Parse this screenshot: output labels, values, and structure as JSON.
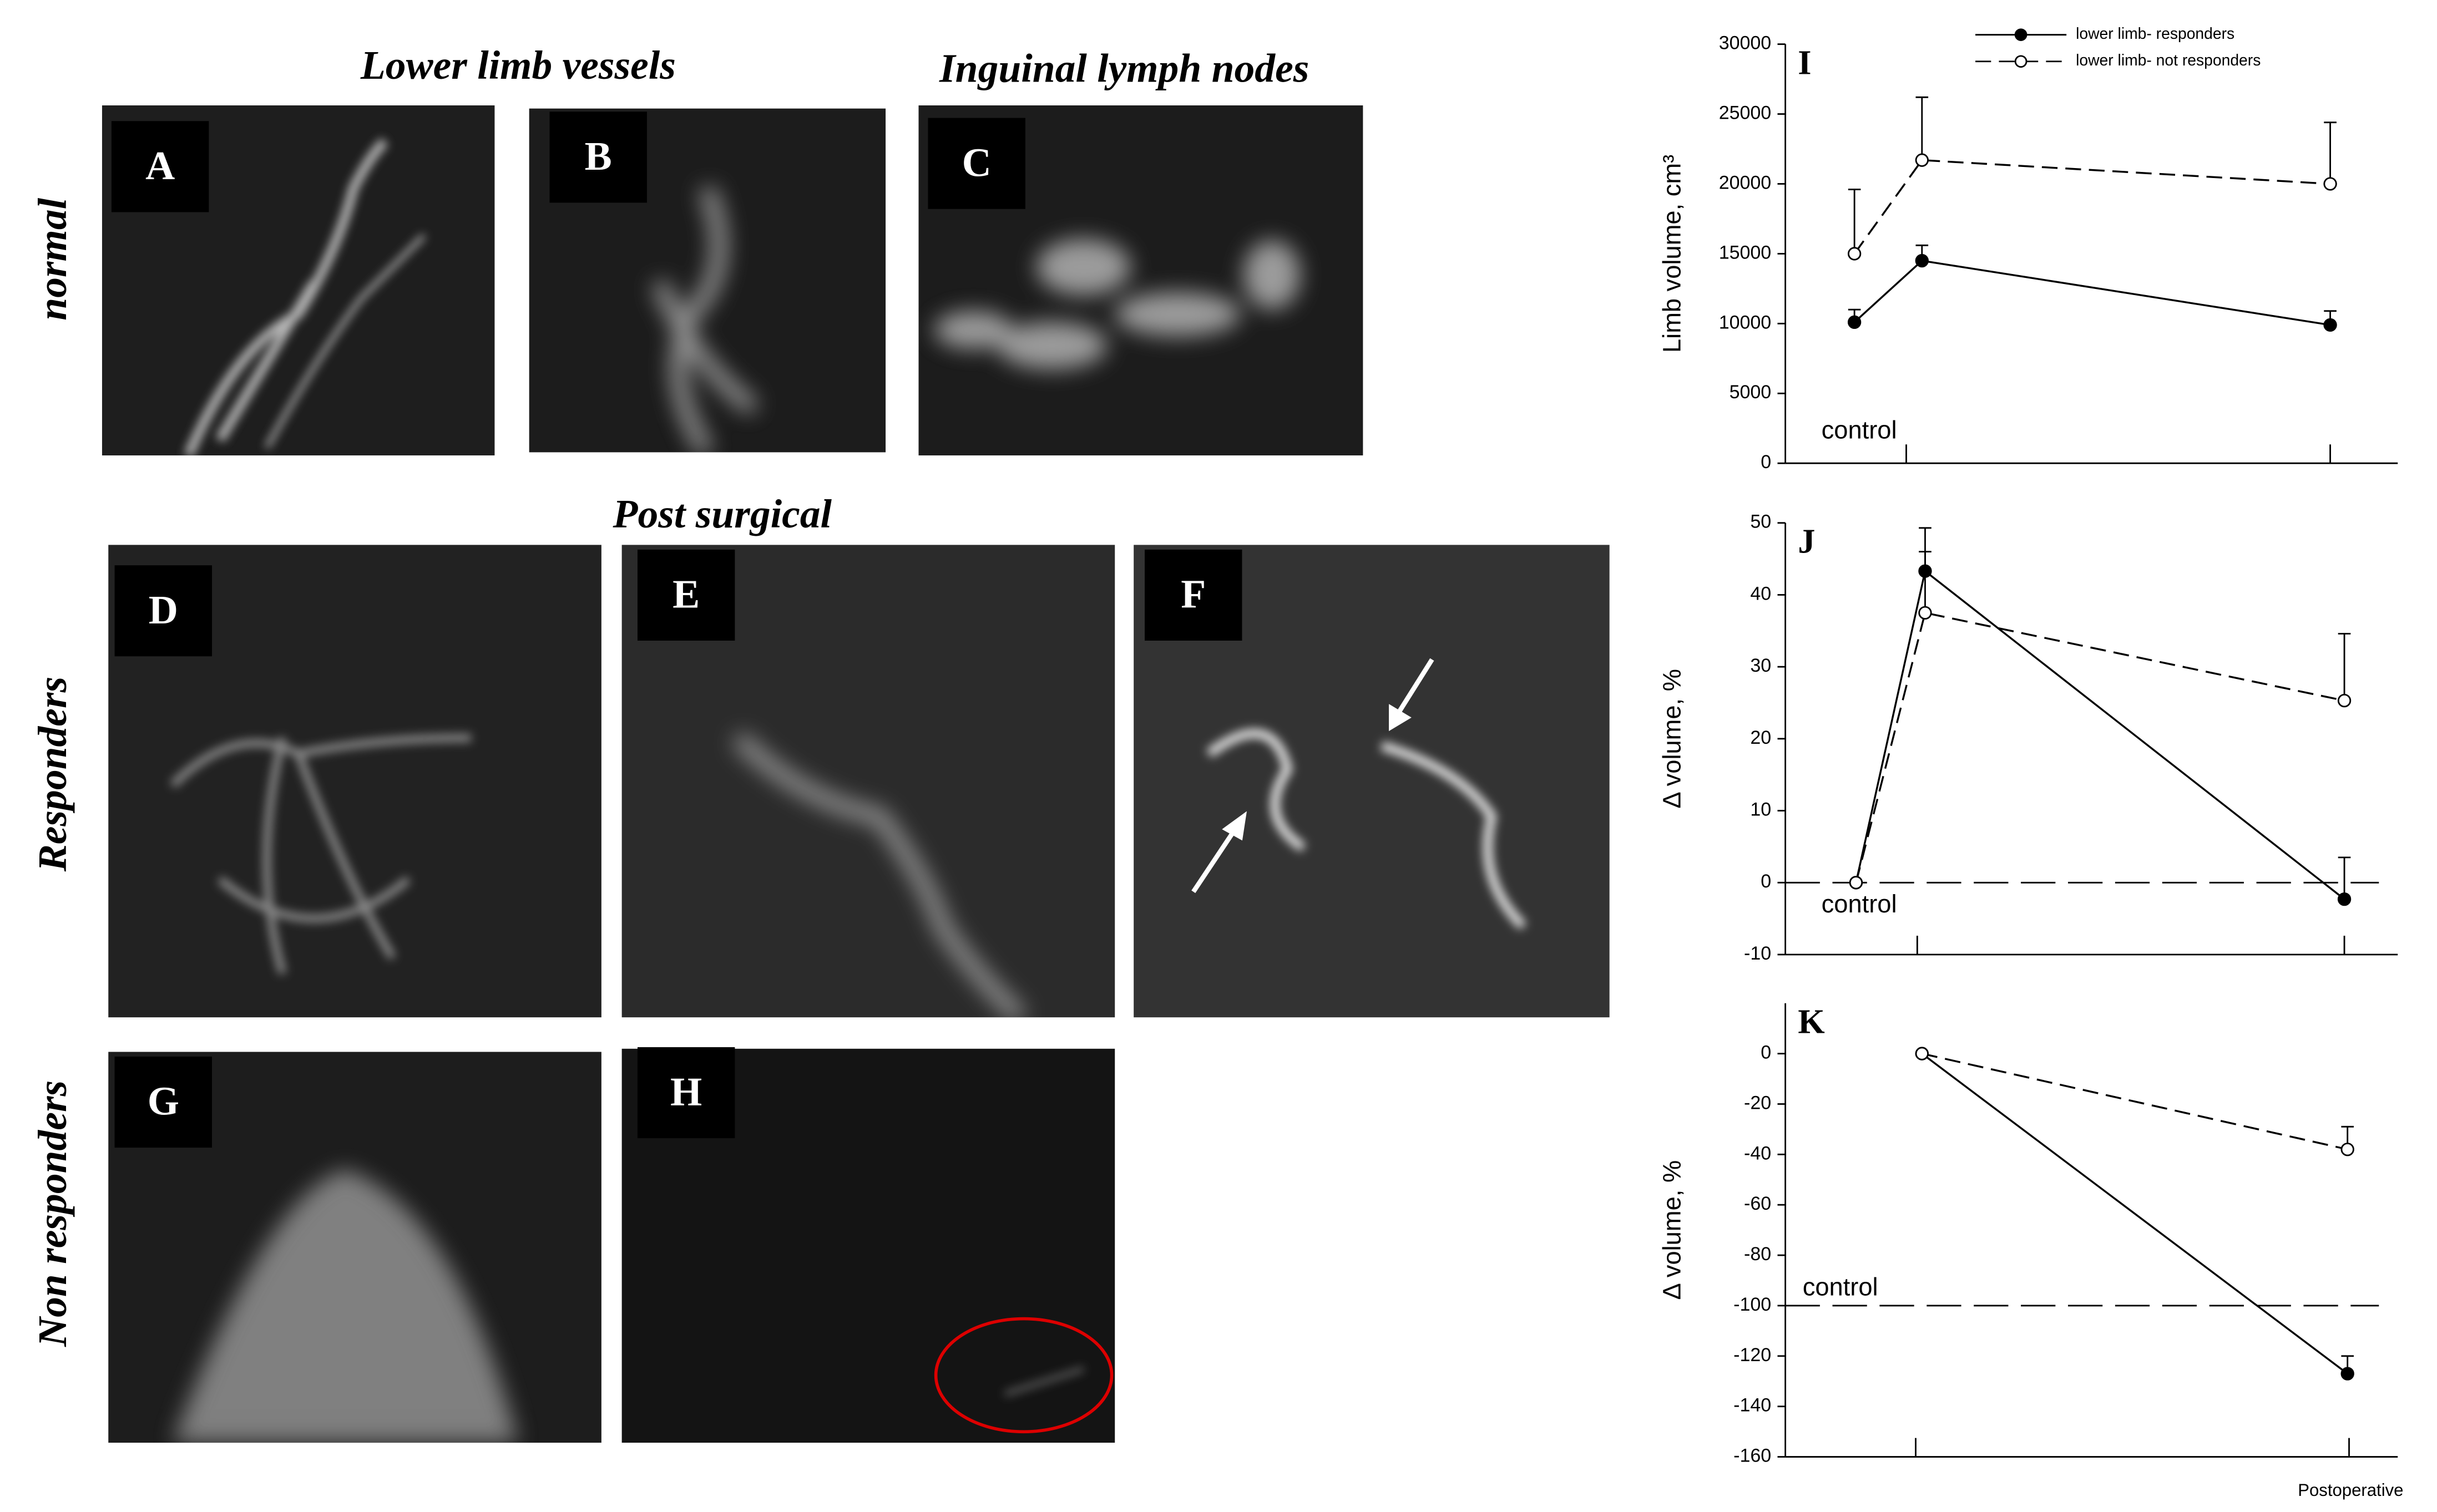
{
  "figure": {
    "column_titles": [
      "Lower limb vessels",
      "Inguinal lymph nodes",
      "Post surgical"
    ],
    "row_labels": [
      "normal",
      "Responders",
      "Non responders"
    ],
    "panels": [
      "A",
      "B",
      "C",
      "D",
      "E",
      "F",
      "G",
      "H"
    ],
    "x_footer": "Postoperative"
  },
  "chart_data": [
    {
      "type": "line",
      "label": "I",
      "y_label": "Limb volume, cm³",
      "annotation": "control",
      "categories": [
        null,
        null,
        null
      ],
      "ylim": [
        0,
        30000
      ],
      "yticks": [
        0,
        5000,
        10000,
        15000,
        20000,
        25000,
        30000
      ],
      "series": [
        {
          "name": "lower limb- responders",
          "color": "#000000",
          "marker": "filled",
          "dashed": false,
          "values": [
            10100,
            14500,
            9900
          ],
          "errors": [
            900,
            1100,
            1000
          ]
        },
        {
          "name": "lower limb- not responders",
          "color": "#000000",
          "marker": "open",
          "dashed": true,
          "values": [
            15000,
            21700,
            20000
          ],
          "errors": [
            4600,
            4500,
            4400
          ]
        }
      ]
    },
    {
      "type": "line",
      "label": "J",
      "y_label": "Δ volume, %",
      "annotation": "control",
      "reference": 0,
      "categories": [
        null,
        null,
        null
      ],
      "ylim": [
        -10,
        50
      ],
      "yticks": [
        -10,
        0,
        10,
        20,
        30,
        40,
        50
      ],
      "series": [
        {
          "name": "lower limb- responders",
          "color": "#000000",
          "marker": "filled",
          "dashed": false,
          "values": [
            0,
            43.3,
            -2.3
          ],
          "errors": [
            null,
            6,
            5.8
          ]
        },
        {
          "name": "lower limb- not responders",
          "color": "#000000",
          "marker": "open",
          "dashed": true,
          "values": [
            0,
            37.5,
            25.3
          ],
          "errors": [
            null,
            8.5,
            9.3
          ]
        }
      ]
    },
    {
      "type": "line",
      "label": "K",
      "y_label": "Δ volume, %",
      "annotation": "control",
      "reference": -100,
      "categories": [
        null,
        null,
        null
      ],
      "ylim": [
        -160,
        20
      ],
      "yticks": [
        -160,
        -140,
        -120,
        -100,
        -80,
        -60,
        -40,
        -20,
        0
      ],
      "series": [
        {
          "name": "lower limb- responders",
          "color": "#000000",
          "marker": "filled",
          "dashed": false,
          "values": [
            null,
            0,
            -127
          ],
          "errors": [
            null,
            null,
            7
          ]
        },
        {
          "name": "lower limb- not responders",
          "color": "#000000",
          "marker": "open",
          "dashed": true,
          "values": [
            null,
            0,
            -38
          ],
          "errors": [
            null,
            null,
            9
          ]
        }
      ]
    }
  ]
}
